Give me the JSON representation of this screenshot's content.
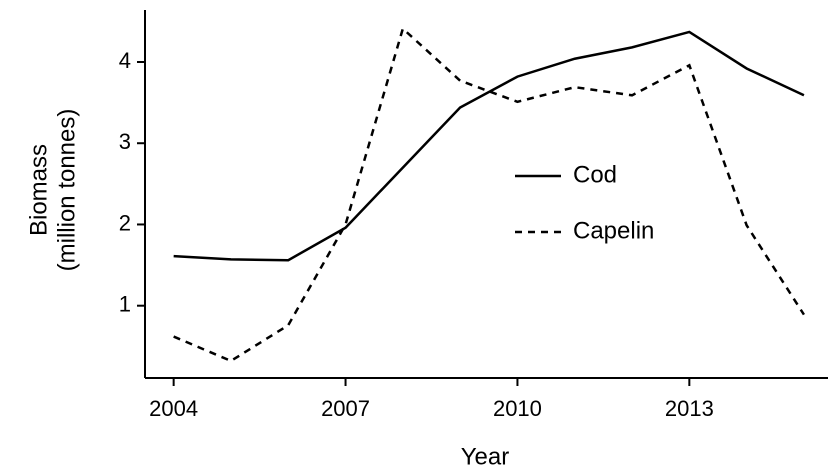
{
  "chart_data": {
    "type": "line",
    "xlabel": "Year",
    "ylabel": [
      "Biomass",
      "(million tonnes)"
    ],
    "x": [
      2004,
      2005,
      2006,
      2007,
      2008,
      2009,
      2010,
      2011,
      2012,
      2013,
      2014,
      2015
    ],
    "series": [
      {
        "name": "Cod",
        "color": "#000000",
        "dash": "solid",
        "values": [
          1.61,
          1.57,
          1.56,
          1.96,
          2.7,
          3.44,
          3.82,
          4.04,
          4.18,
          4.37,
          3.92,
          3.59
        ]
      },
      {
        "name": "Capelin",
        "color": "#000000",
        "dash": "dashed",
        "values": [
          0.62,
          0.32,
          0.76,
          2.0,
          4.41,
          3.77,
          3.51,
          3.69,
          3.59,
          3.96,
          1.99,
          0.89
        ]
      }
    ],
    "xlim": [
      2003.5,
      2015.42
    ],
    "xticks": [
      2004,
      2007,
      2010,
      2013
    ],
    "ylim": [
      0.11,
      4.64
    ],
    "yticks": [
      1,
      2,
      3,
      4
    ],
    "grid": false,
    "legend": "center-right"
  }
}
